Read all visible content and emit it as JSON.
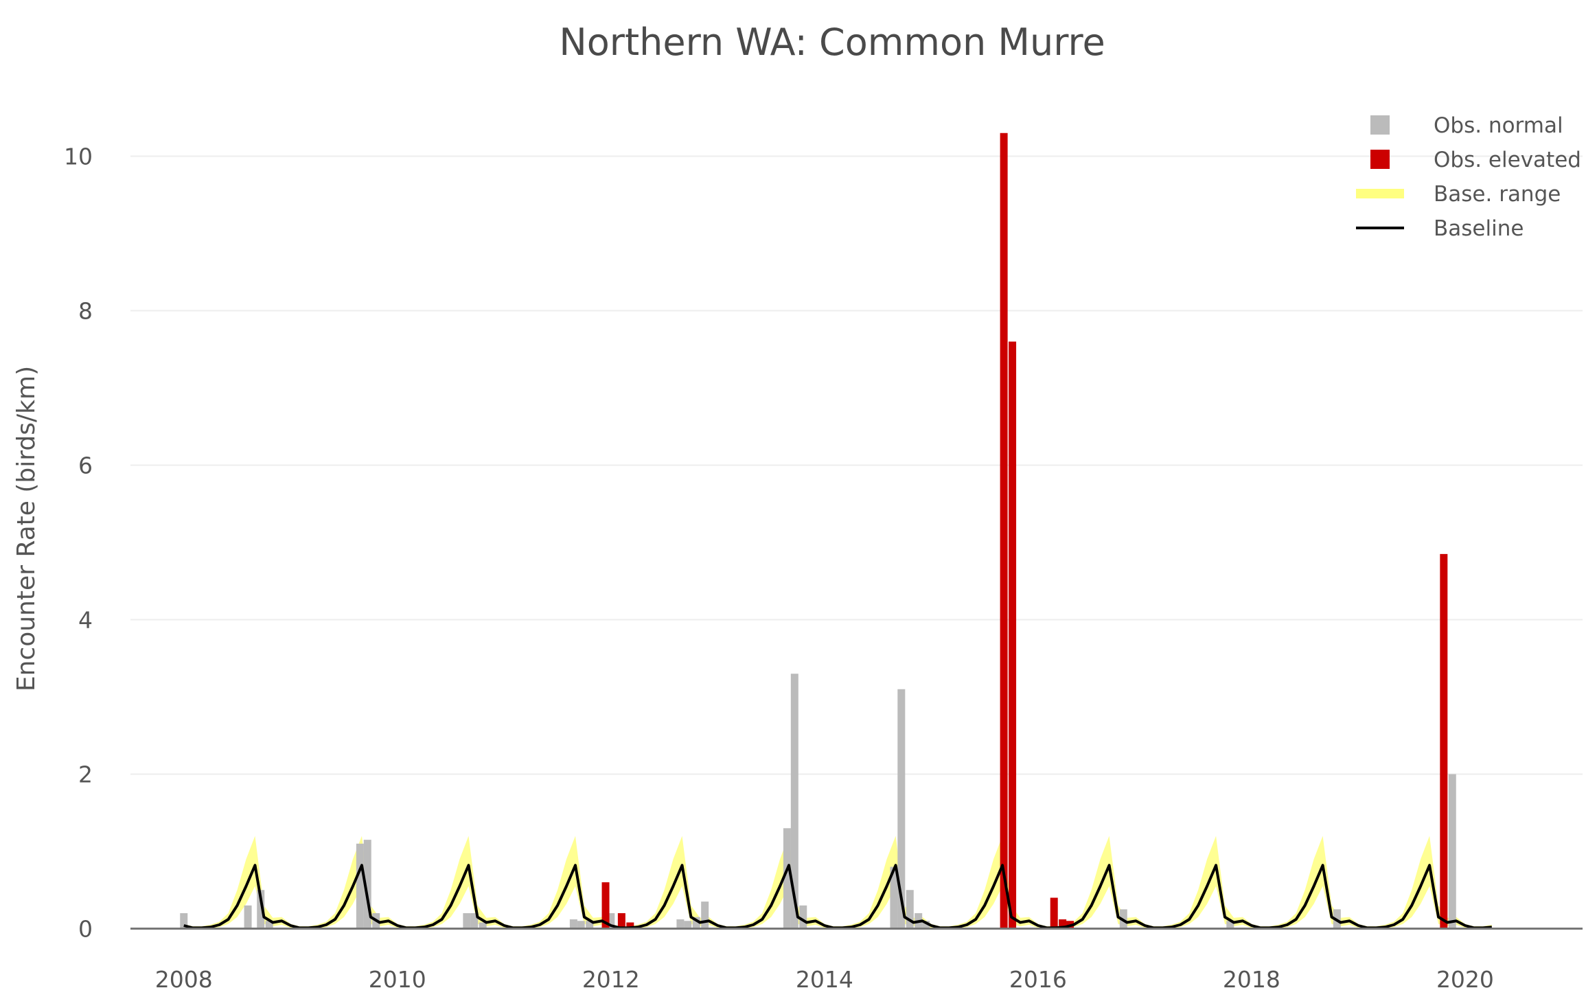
{
  "chart_data": {
    "type": "bar",
    "title": "Northern WA: Common Murre",
    "xlabel": "",
    "ylabel": "Encounter Rate (birds/km)",
    "xlim": [
      2007.5,
      2021.1
    ],
    "ylim": [
      -0.2,
      10.6
    ],
    "yticks": [
      0,
      2,
      4,
      6,
      8,
      10
    ],
    "xticks": [
      2008,
      2010,
      2012,
      2014,
      2016,
      2018,
      2020
    ],
    "grid": "horizontal",
    "legend_position": "top-right",
    "colors": {
      "normal": "#bbbbbb",
      "elevated": "#cc0000",
      "range": "#ffff80",
      "baseline": "#000000",
      "grid": "#eeeeee",
      "axis": "#777777"
    },
    "legend": [
      {
        "key": "normal",
        "label": "Obs. normal"
      },
      {
        "key": "elevated",
        "label": "Obs. elevated"
      },
      {
        "key": "range",
        "label": "Base. range"
      },
      {
        "key": "baseline",
        "label": "Baseline"
      }
    ],
    "seasonal_baseline": {
      "start": 2008.0,
      "end": 2020.25,
      "monthly_values": [
        0.04,
        0.01,
        0.01,
        0.02,
        0.05,
        0.12,
        0.3,
        0.55,
        0.82,
        0.15,
        0.08,
        0.1
      ],
      "monthly_upper": [
        0.06,
        0.03,
        0.03,
        0.05,
        0.09,
        0.2,
        0.5,
        0.9,
        1.2,
        0.3,
        0.14,
        0.15
      ],
      "monthly_lower": [
        0.01,
        0.0,
        0.0,
        0.0,
        0.02,
        0.06,
        0.15,
        0.32,
        0.55,
        0.06,
        0.03,
        0.05
      ]
    },
    "series": [
      {
        "name": "Obs. normal",
        "x": [
          2008.0,
          2008.6,
          2008.72,
          2008.8,
          2009.65,
          2009.72,
          2009.8,
          2010.65,
          2010.72,
          2010.8,
          2011.65,
          2011.72,
          2011.8,
          2012.0,
          2012.65,
          2012.72,
          2012.8,
          2012.88,
          2013.65,
          2013.72,
          2013.8,
          2014.65,
          2014.72,
          2014.8,
          2014.88,
          2014.95,
          2016.8,
          2017.8,
          2018.8,
          2019.88
        ],
        "values": [
          0.2,
          0.3,
          0.5,
          0.1,
          1.1,
          1.15,
          0.2,
          0.2,
          0.2,
          0.08,
          0.12,
          0.1,
          0.1,
          0.2,
          0.12,
          0.1,
          0.15,
          0.35,
          1.3,
          3.3,
          0.3,
          0.8,
          3.1,
          0.5,
          0.2,
          0.1,
          0.25,
          0.1,
          0.25,
          2.0
        ]
      },
      {
        "name": "Obs. elevated",
        "x": [
          2011.95,
          2012.1,
          2012.18,
          2015.68,
          2015.76,
          2016.15,
          2016.23,
          2016.3,
          2019.8
        ],
        "values": [
          0.6,
          0.2,
          0.08,
          10.3,
          7.6,
          0.4,
          0.12,
          0.1,
          4.85
        ]
      }
    ]
  }
}
